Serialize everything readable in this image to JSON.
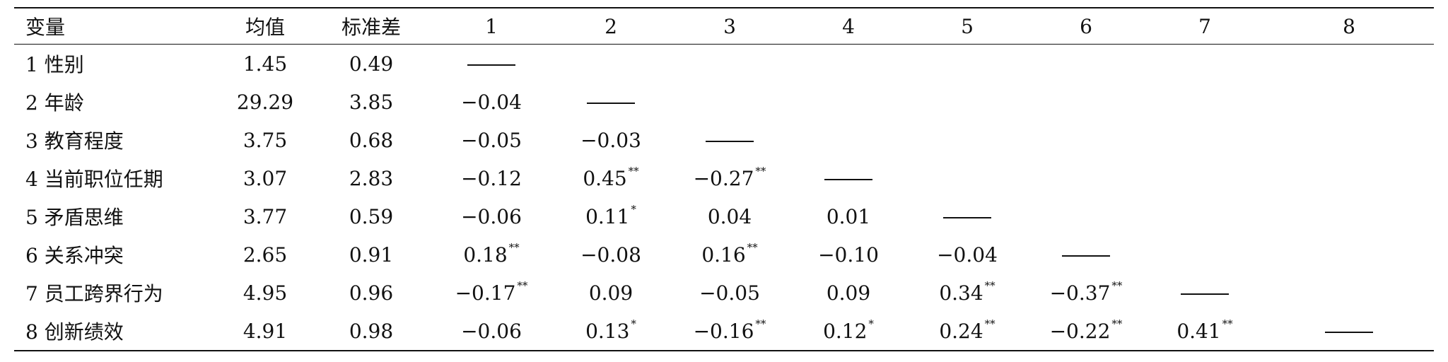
{
  "headers": [
    "变量",
    "均值",
    "标准差",
    "1",
    "2",
    "3",
    "4",
    "5",
    "6",
    "7",
    "8"
  ],
  "rows": [
    {
      "var": "1 性别",
      "mean": "1.45",
      "sd": "0.49",
      "c": [
        {
          "dash": true
        },
        {},
        {},
        {},
        {},
        {},
        {},
        {}
      ]
    },
    {
      "var": "2 年龄",
      "mean": "29.29",
      "sd": "3.85",
      "c": [
        {
          "v": "−0.04"
        },
        {
          "dash": true
        },
        {},
        {},
        {},
        {},
        {},
        {}
      ]
    },
    {
      "var": "3 教育程度",
      "mean": "3.75",
      "sd": "0.68",
      "c": [
        {
          "v": "−0.05"
        },
        {
          "v": "−0.03"
        },
        {
          "dash": true
        },
        {},
        {},
        {},
        {},
        {}
      ]
    },
    {
      "var": "4 当前职位任期",
      "mean": "3.07",
      "sd": "2.83",
      "c": [
        {
          "v": "−0.12"
        },
        {
          "v": "0.45",
          "s": "**"
        },
        {
          "v": "−0.27",
          "s": "**"
        },
        {
          "dash": true
        },
        {},
        {},
        {},
        {}
      ]
    },
    {
      "var": "5 矛盾思维",
      "mean": "3.77",
      "sd": "0.59",
      "c": [
        {
          "v": "−0.06"
        },
        {
          "v": "0.11",
          "s": "*"
        },
        {
          "v": "0.04"
        },
        {
          "v": "0.01"
        },
        {
          "dash": true
        },
        {},
        {},
        {}
      ]
    },
    {
      "var": "6 关系冲突",
      "mean": "2.65",
      "sd": "0.91",
      "c": [
        {
          "v": "0.18",
          "s": "**"
        },
        {
          "v": "−0.08"
        },
        {
          "v": "0.16",
          "s": "**"
        },
        {
          "v": "−0.10"
        },
        {
          "v": "−0.04"
        },
        {
          "dash": true
        },
        {},
        {}
      ]
    },
    {
      "var": "7 员工跨界行为",
      "mean": "4.95",
      "sd": "0.96",
      "c": [
        {
          "v": "−0.17",
          "s": "**"
        },
        {
          "v": "0.09"
        },
        {
          "v": "−0.05"
        },
        {
          "v": "0.09"
        },
        {
          "v": "0.34",
          "s": "**"
        },
        {
          "v": "−0.37",
          "s": "**"
        },
        {
          "dash": true
        },
        {}
      ]
    },
    {
      "var": "8 创新绩效",
      "mean": "4.91",
      "sd": "0.98",
      "c": [
        {
          "v": "−0.06"
        },
        {
          "v": "0.13",
          "s": "*"
        },
        {
          "v": "−0.16",
          "s": "**"
        },
        {
          "v": "0.12",
          "s": "*"
        },
        {
          "v": "0.24",
          "s": "**"
        },
        {
          "v": "−0.22",
          "s": "**"
        },
        {
          "v": "0.41",
          "s": "**"
        },
        {
          "dash": true
        }
      ]
    }
  ]
}
